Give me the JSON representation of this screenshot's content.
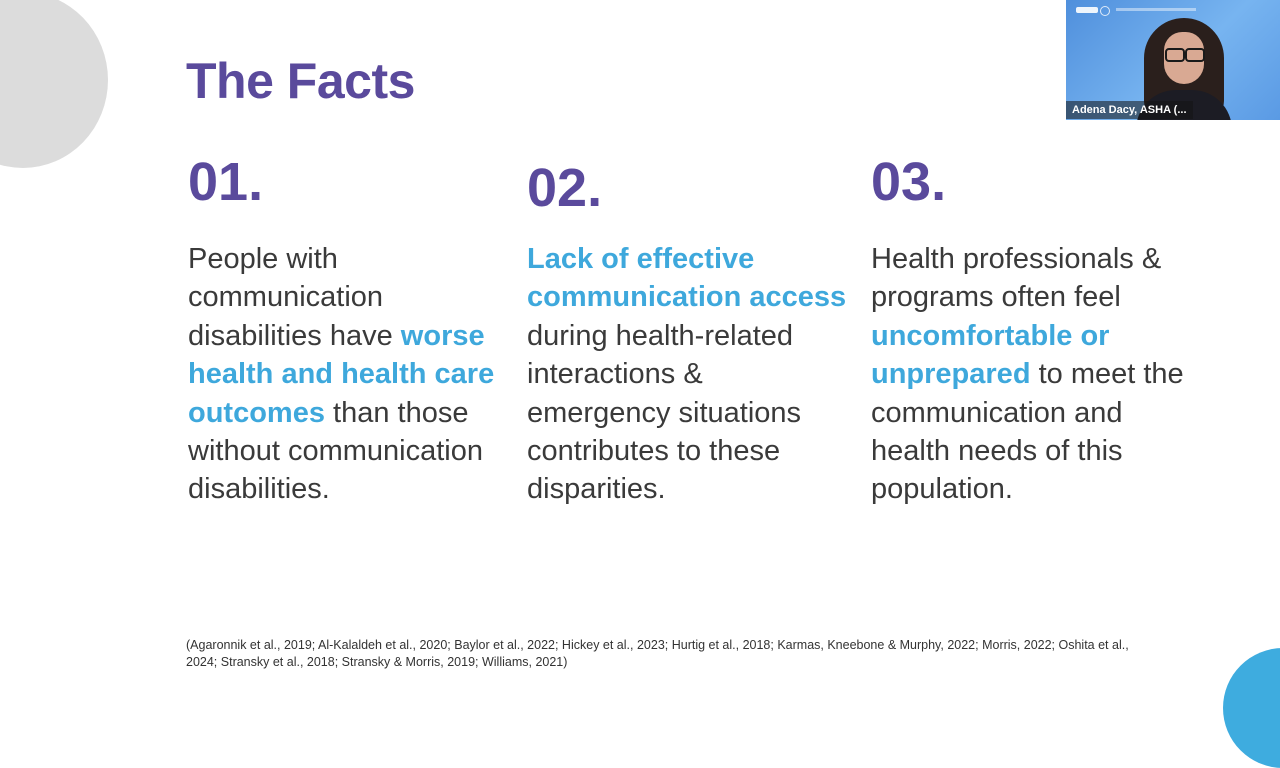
{
  "slide": {
    "title": "The Facts",
    "columns": [
      {
        "number": "01.",
        "segments": [
          {
            "text": "People with communication disabilities have ",
            "highlight": false
          },
          {
            "text": "worse health and health care outcomes",
            "highlight": true
          },
          {
            "text": " than those without communication disabilities.",
            "highlight": false
          }
        ]
      },
      {
        "number": "02.",
        "segments": [
          {
            "text": "Lack of effective communication access",
            "highlight": true
          },
          {
            "text": " during health-related interactions & emergency situations contributes to these disparities.",
            "highlight": false
          }
        ]
      },
      {
        "number": "03.",
        "segments": [
          {
            "text": "Health professionals & programs often feel ",
            "highlight": false
          },
          {
            "text": "uncomfortable or unprepared",
            "highlight": true
          },
          {
            "text": " to meet the communication and health needs of this population.",
            "highlight": false
          }
        ]
      }
    ],
    "citation": "(Agaronnik et al., 2019; Al-Kalaldeh et al., 2020; Baylor et al., 2022; Hickey et al., 2023; Hurtig et al., 2018; Karmas, Kneebone & Murphy, 2022; Morris, 2022; Oshita et al., 2024; Stransky et al., 2018; Stransky & Morris, 2019; Williams, 2021)"
  },
  "video_tile": {
    "participant_name": "Adena Dacy, ASHA (..."
  },
  "colors": {
    "title": "#5a4a9c",
    "highlight": "#3ea8dc",
    "body_text": "#3a3a3a",
    "deco_gray": "#dcdcdc",
    "deco_blue": "#3eacdf"
  }
}
